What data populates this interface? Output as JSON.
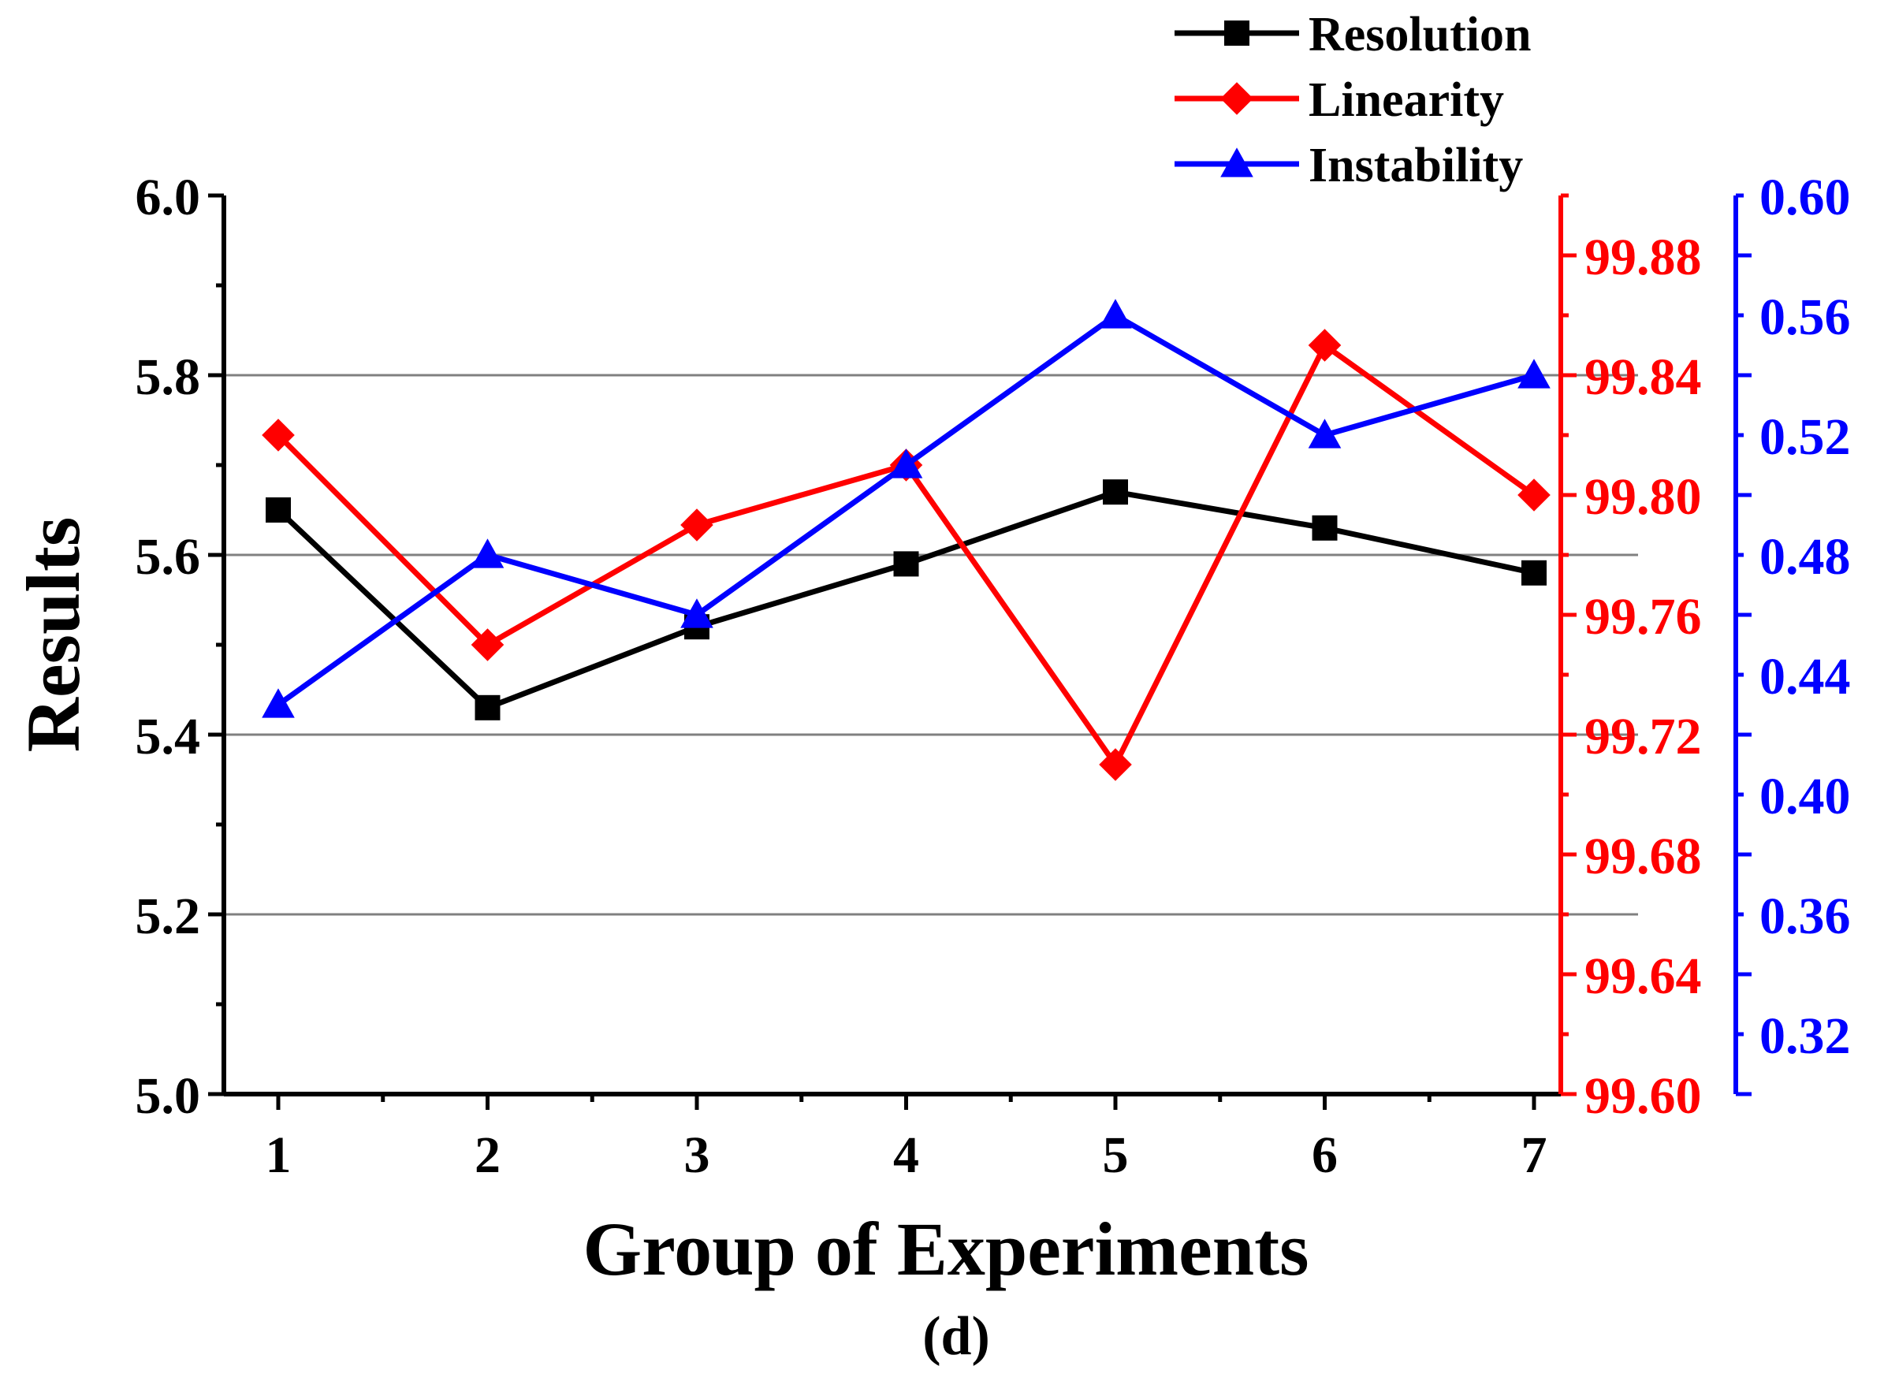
{
  "chart_data": {
    "type": "line",
    "title": "",
    "caption": "(d)",
    "xlabel": "Group of Experiments",
    "ylabel": "Results",
    "categories": [
      "1",
      "2",
      "3",
      "4",
      "5",
      "6",
      "7"
    ],
    "axes": {
      "left": {
        "range": [
          5.0,
          6.0
        ],
        "ticks": [
          "5.0",
          "5.2",
          "5.4",
          "5.6",
          "5.8",
          "6.0"
        ],
        "color": "#000000",
        "gridlines": [
          5.2,
          5.4,
          5.6,
          5.8
        ]
      },
      "right_linearity": {
        "range": [
          99.6,
          99.9
        ],
        "ticks": [
          "99.60",
          "99.64",
          "99.68",
          "99.72",
          "99.76",
          "99.80",
          "99.84",
          "99.88"
        ],
        "color": "#ff0000"
      },
      "right_instability": {
        "range": [
          0.3,
          0.6
        ],
        "ticks": [
          "0.32",
          "0.36",
          "0.40",
          "0.44",
          "0.48",
          "0.52",
          "0.56",
          "0.60"
        ],
        "color": "#0000ff"
      }
    },
    "series": [
      {
        "name": "Resolution",
        "axis": "left",
        "color": "#000000",
        "marker": "square",
        "values": [
          5.65,
          5.43,
          5.52,
          5.59,
          5.67,
          5.63,
          5.58
        ]
      },
      {
        "name": "Linearity",
        "axis": "right_linearity",
        "color": "#ff0000",
        "marker": "diamond",
        "values": [
          99.82,
          99.75,
          99.79,
          99.81,
          99.71,
          99.85,
          99.8
        ]
      },
      {
        "name": "Instability",
        "axis": "right_instability",
        "color": "#0000ff",
        "marker": "triangle",
        "values": [
          0.43,
          0.48,
          0.46,
          0.51,
          0.56,
          0.52,
          0.54
        ]
      }
    ],
    "legend": {
      "position": "top-right",
      "items": [
        "Resolution",
        "Linearity",
        "Instability"
      ]
    },
    "gridline_color": "#808080"
  }
}
